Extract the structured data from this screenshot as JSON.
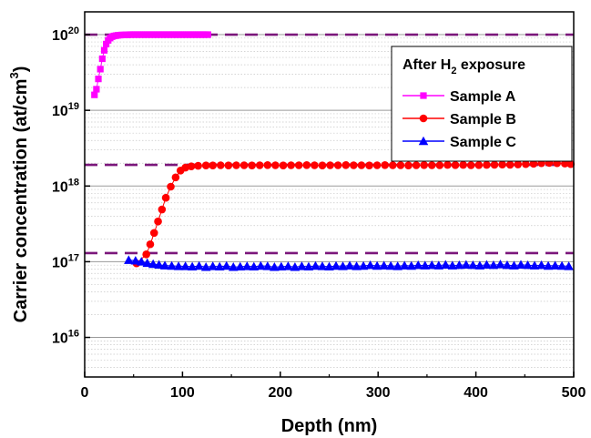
{
  "chart_data": {
    "type": "scatter",
    "title": "",
    "xlabel": "Depth (nm)",
    "ylabel": {
      "main": "Carrier concentration (at/cm",
      "sup": "3",
      "end": ")"
    },
    "xlim": [
      0,
      500
    ],
    "ylim": [
      3000000000000000.0,
      2e+20
    ],
    "yscale": "log",
    "x_ticks": [
      0,
      100,
      200,
      300,
      400,
      500
    ],
    "x_tick_labels": [
      "0",
      "100",
      "200",
      "300",
      "400",
      "500"
    ],
    "y_ticks": [
      {
        "value": 1e+16,
        "base": "10",
        "exp": "16"
      },
      {
        "value": 1e+17,
        "base": "10",
        "exp": "17"
      },
      {
        "value": 1e+18,
        "base": "10",
        "exp": "18"
      },
      {
        "value": 1e+19,
        "base": "10",
        "exp": "19"
      },
      {
        "value": 1e+20,
        "base": "10",
        "exp": "20"
      }
    ],
    "grid": "horizontal minor and major lines",
    "legend": {
      "position": "top-right",
      "title": {
        "pre": "After H",
        "sub": "2",
        "post": " exposure"
      }
    },
    "reference_lines": [
      {
        "y": 1e+20,
        "color": "#7b177b",
        "style": "dashed"
      },
      {
        "y": 1.9e+18,
        "color": "#7b177b",
        "style": "dashed"
      },
      {
        "y": 1.3e+17,
        "color": "#7b177b",
        "style": "dashed"
      }
    ],
    "series": [
      {
        "name": "Sample A",
        "color": "#ff00ff",
        "marker": "square",
        "x": [
          10,
          12,
          14,
          16,
          18,
          20,
          22,
          24,
          26,
          28,
          30,
          32,
          34,
          36,
          38,
          40,
          42,
          44,
          46,
          48,
          50,
          52,
          54,
          56,
          58,
          60,
          62,
          64,
          66,
          68,
          70,
          72,
          74,
          76,
          78,
          80,
          82,
          84,
          86,
          88,
          90,
          92,
          94,
          96,
          98,
          100,
          102,
          104,
          106,
          108,
          110,
          112,
          114,
          116,
          118,
          120,
          122,
          124,
          126
        ],
        "y": [
          1.6e+19,
          1.9e+19,
          2.6e+19,
          3.5e+19,
          4.8e+19,
          6.2e+19,
          7.5e+19,
          8.4e+19,
          9e+19,
          9.4e+19,
          9.6e+19,
          9.7e+19,
          9.8e+19,
          9.85e+19,
          9.9e+19,
          9.9e+19,
          9.95e+19,
          9.95e+19,
          1e+20,
          1e+20,
          1e+20,
          1e+20,
          1e+20,
          1e+20,
          1e+20,
          1e+20,
          1e+20,
          1e+20,
          1e+20,
          1e+20,
          1e+20,
          1e+20,
          1e+20,
          1e+20,
          1e+20,
          1e+20,
          1e+20,
          1e+20,
          1e+20,
          1e+20,
          1e+20,
          1e+20,
          1e+20,
          1e+20,
          1e+20,
          1e+20,
          1e+20,
          1e+20,
          1e+20,
          1e+20,
          1e+20,
          1e+20,
          1e+20,
          1e+20,
          1e+20,
          1e+20,
          1e+20,
          1e+20,
          1e+20
        ]
      },
      {
        "name": "Sample B",
        "color": "#ff0000",
        "marker": "circle",
        "x": [
          53,
          63,
          67,
          71,
          75,
          79,
          83,
          88,
          93,
          98,
          103,
          109,
          116,
          124,
          131,
          139,
          147,
          155,
          163,
          171,
          179,
          187,
          195,
          203,
          211,
          219,
          227,
          235,
          243,
          251,
          259,
          267,
          275,
          283,
          291,
          299,
          307,
          315,
          323,
          331,
          339,
          347,
          355,
          363,
          371,
          379,
          387,
          395,
          403,
          411,
          419,
          427,
          435,
          443,
          451,
          459,
          467,
          475,
          483,
          491,
          497
        ],
        "y": [
          9.5e+16,
          1.25e+17,
          1.7e+17,
          2.4e+17,
          3.4e+17,
          4.9e+17,
          7e+17,
          9.8e+17,
          1.3e+18,
          1.6e+18,
          1.75e+18,
          1.82e+18,
          1.85e+18,
          1.87e+18,
          1.87e+18,
          1.88e+18,
          1.87e+18,
          1.88e+18,
          1.88e+18,
          1.87e+18,
          1.88e+18,
          1.89e+18,
          1.88e+18,
          1.87e+18,
          1.88e+18,
          1.88e+18,
          1.89e+18,
          1.88e+18,
          1.87e+18,
          1.88e+18,
          1.88e+18,
          1.89e+18,
          1.88e+18,
          1.88e+18,
          1.87e+18,
          1.88e+18,
          1.89e+18,
          1.88e+18,
          1.88e+18,
          1.87e+18,
          1.88e+18,
          1.89e+18,
          1.88e+18,
          1.88e+18,
          1.9e+18,
          1.89e+18,
          1.9e+18,
          1.88e+18,
          1.89e+18,
          1.9e+18,
          1.91e+18,
          1.92e+18,
          1.91e+18,
          1.93e+18,
          1.95e+18,
          1.97e+18,
          2e+18,
          2.02e+18,
          2e+18,
          1.98e+18,
          1.95e+18
        ]
      },
      {
        "name": "Sample C",
        "color": "#0000ff",
        "marker": "triangle",
        "x": [
          45,
          52,
          58,
          64,
          70,
          76,
          82,
          89,
          96,
          103,
          110,
          117,
          124,
          131,
          138,
          145,
          152,
          159,
          166,
          173,
          180,
          187,
          194,
          201,
          208,
          215,
          222,
          229,
          236,
          243,
          250,
          257,
          264,
          271,
          278,
          285,
          292,
          299,
          306,
          313,
          320,
          327,
          334,
          341,
          348,
          355,
          362,
          369,
          376,
          383,
          390,
          397,
          404,
          411,
          418,
          425,
          432,
          439,
          446,
          453,
          460,
          467,
          474,
          481,
          488,
          495
        ],
        "y": [
          1.05e+17,
          1.03e+17,
          1e+17,
          9.6e+16,
          9.3e+16,
          9.1e+16,
          8.9e+16,
          8.8e+16,
          8.7e+16,
          8.7e+16,
          8.6e+16,
          8.8e+16,
          8.5e+16,
          8.7e+16,
          8.6e+16,
          8.8e+16,
          8.5e+16,
          8.6e+16,
          8.7e+16,
          8.6e+16,
          8.8e+16,
          8.7e+16,
          8.5e+16,
          8.6e+16,
          8.7e+16,
          8.5e+16,
          8.7e+16,
          8.6e+16,
          8.8e+16,
          8.7e+16,
          8.6e+16,
          8.8e+16,
          8.7e+16,
          8.9e+16,
          8.7e+16,
          8.8e+16,
          9e+16,
          8.8e+16,
          8.9e+16,
          8.8e+16,
          8.7e+16,
          8.9e+16,
          8.8e+16,
          9e+16,
          8.9e+16,
          9e+16,
          8.9e+16,
          9.1e+16,
          8.9e+16,
          9e+16,
          9.1e+16,
          9e+16,
          8.9e+16,
          9.1e+16,
          9e+16,
          9.2e+16,
          9e+16,
          8.9e+16,
          9.1e+16,
          9e+16,
          8.9e+16,
          9e+16,
          8.8e+16,
          8.9e+16,
          8.8e+16,
          8.7e+16
        ]
      }
    ]
  }
}
